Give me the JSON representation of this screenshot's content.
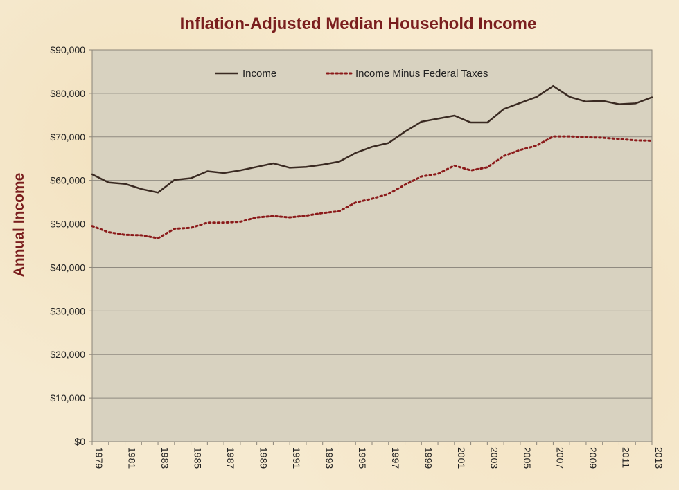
{
  "chart_data": {
    "type": "line",
    "title": "Inflation-Adjusted Median Household Income",
    "xlabel": "",
    "ylabel": "Annual Income",
    "ylim": [
      0,
      90000
    ],
    "yticks": [
      "$0",
      "$10,000",
      "$20,000",
      "$30,000",
      "$40,000",
      "$50,000",
      "$60,000",
      "$70,000",
      "$80,000",
      "$90,000"
    ],
    "xticks": [
      "1979",
      "1981",
      "1983",
      "1985",
      "1987",
      "1989",
      "1991",
      "1993",
      "1995",
      "1997",
      "1999",
      "2001",
      "2003",
      "2005",
      "2007",
      "2009",
      "2011",
      "2013"
    ],
    "grid": true,
    "legend_position": "top",
    "x": [
      1979,
      1980,
      1981,
      1982,
      1983,
      1984,
      1985,
      1986,
      1987,
      1988,
      1989,
      1990,
      1991,
      1992,
      1993,
      1994,
      1995,
      1996,
      1997,
      1998,
      1999,
      2000,
      2001,
      2002,
      2003,
      2004,
      2005,
      2006,
      2007,
      2008,
      2009,
      2010,
      2011,
      2012,
      2013
    ],
    "series": [
      {
        "name": "Income",
        "style": "solid",
        "color": "#3a2a22",
        "values": [
          61400,
          59500,
          59200,
          58000,
          57200,
          60100,
          60500,
          62100,
          61700,
          62300,
          63100,
          63900,
          62900,
          63100,
          63600,
          64300,
          66300,
          67700,
          68600,
          71200,
          73500,
          74200,
          74900,
          73300,
          73300,
          76400,
          77800,
          79200,
          81700,
          79200,
          78100,
          78300,
          77500,
          77700,
          79100
        ]
      },
      {
        "name": "Income Minus Federal Taxes",
        "style": "dotted",
        "color": "#8b1a1a",
        "values": [
          49500,
          48100,
          47500,
          47400,
          46700,
          48900,
          49100,
          50300,
          50300,
          50500,
          51500,
          51800,
          51500,
          51900,
          52500,
          52900,
          54900,
          55800,
          56900,
          59000,
          60900,
          61500,
          63400,
          62300,
          63000,
          65600,
          67000,
          68000,
          70100,
          70100,
          69900,
          69800,
          69500,
          69200,
          69100
        ]
      }
    ]
  }
}
